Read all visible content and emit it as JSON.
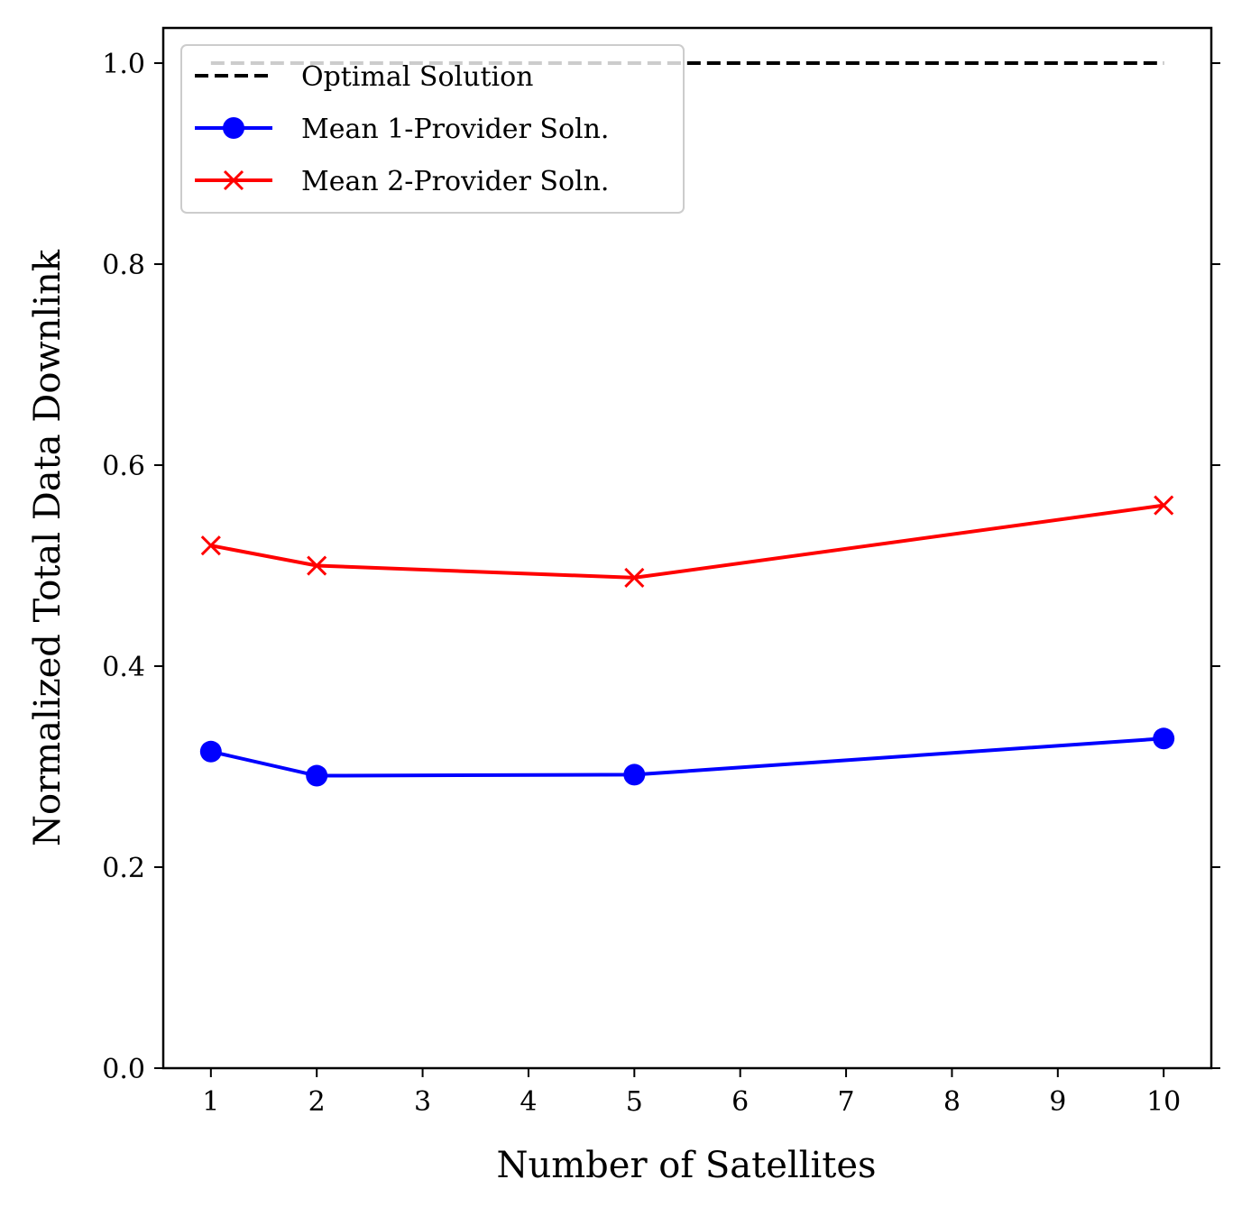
{
  "chart_data": {
    "type": "line",
    "xlabel": "Number of Satellites",
    "ylabel": "Normalized Total Data Downlink",
    "xlim": [
      0.55,
      10.45
    ],
    "ylim": [
      0.0,
      1.035
    ],
    "x_ticks": [
      1,
      2,
      3,
      4,
      5,
      6,
      7,
      8,
      9,
      10
    ],
    "x_tick_labels": [
      "1",
      "2",
      "3",
      "4",
      "5",
      "6",
      "7",
      "8",
      "9",
      "10"
    ],
    "y_ticks": [
      0.0,
      0.2,
      0.4,
      0.6,
      0.8,
      1.0
    ],
    "y_tick_labels": [
      "0.0",
      "0.2",
      "0.4",
      "0.6",
      "0.8",
      "1.0"
    ],
    "grid": false,
    "legend_position": "top-left",
    "series": [
      {
        "name": "Optimal Solution",
        "color": "#000000",
        "style": "dashed",
        "marker": "none",
        "x": [
          1,
          10
        ],
        "y": [
          1.0,
          1.0
        ]
      },
      {
        "name": "Mean 1-Provider Soln.",
        "color": "#0000ff",
        "style": "solid",
        "marker": "circle",
        "x": [
          1,
          2,
          5,
          10
        ],
        "y": [
          0.315,
          0.291,
          0.292,
          0.328
        ]
      },
      {
        "name": "Mean 2-Provider Soln.",
        "color": "#ff0000",
        "style": "solid",
        "marker": "x",
        "x": [
          1,
          2,
          5,
          10
        ],
        "y": [
          0.52,
          0.5,
          0.488,
          0.56
        ]
      }
    ]
  }
}
